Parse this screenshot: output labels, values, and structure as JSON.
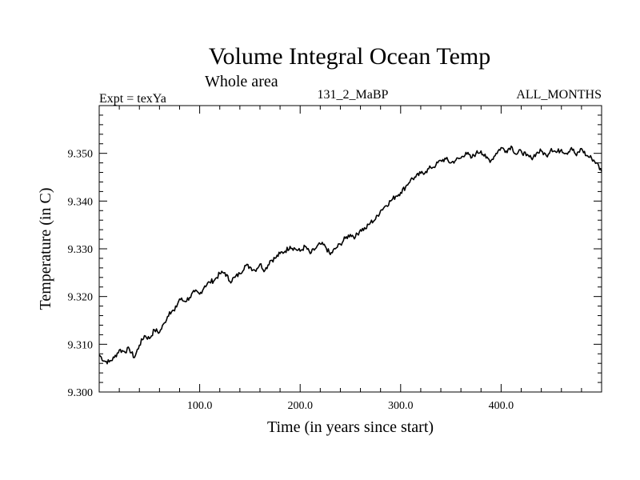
{
  "chart_data": {
    "type": "line",
    "title": "Volume Integral Ocean Temp",
    "subtitle": "Whole area",
    "annotations": {
      "left": "Expt = texYa",
      "center": "131_2_MaBP",
      "right": "ALL_MONTHS"
    },
    "xlabel": "Time (in years since start)",
    "ylabel": "Temperature (in C)",
    "xlim": [
      0,
      500
    ],
    "ylim": [
      9.3,
      9.36
    ],
    "x_ticks": [
      {
        "value": 100,
        "label": "100.0"
      },
      {
        "value": 200,
        "label": "200.0"
      },
      {
        "value": 300,
        "label": "300.0"
      },
      {
        "value": 400,
        "label": "400.0"
      }
    ],
    "y_ticks": [
      {
        "value": 9.3,
        "label": "9.300"
      },
      {
        "value": 9.31,
        "label": "9.310"
      },
      {
        "value": 9.32,
        "label": "9.320"
      },
      {
        "value": 9.33,
        "label": "9.330"
      },
      {
        "value": 9.34,
        "label": "9.340"
      },
      {
        "value": 9.35,
        "label": "9.350"
      }
    ],
    "grid": false,
    "line_color": "#000000",
    "series": [
      {
        "x": [
          0,
          5,
          10,
          15,
          20,
          25,
          30,
          35,
          40,
          45,
          50,
          55,
          60,
          65,
          70,
          75,
          80,
          85,
          90,
          95,
          100,
          105,
          110,
          115,
          120,
          125,
          130,
          135,
          140,
          145,
          150,
          155,
          160,
          165,
          170,
          175,
          180,
          185,
          190,
          195,
          200,
          205,
          210,
          215,
          220,
          225,
          230,
          235,
          240,
          245,
          250,
          255,
          260,
          265,
          270,
          275,
          280,
          285,
          290,
          295,
          300,
          305,
          310,
          315,
          320,
          325,
          330,
          335,
          340,
          345,
          350,
          355,
          360,
          365,
          370,
          375,
          380,
          385,
          390,
          395,
          400,
          405,
          410,
          415,
          420,
          425,
          430,
          435,
          440,
          445,
          450,
          455,
          460,
          465,
          470,
          475,
          480,
          485,
          490,
          495,
          500
        ],
        "y": [
          9.3078,
          9.3065,
          9.3063,
          9.3072,
          9.3088,
          9.3085,
          9.309,
          9.3072,
          9.3098,
          9.3118,
          9.3112,
          9.313,
          9.3125,
          9.3145,
          9.3168,
          9.317,
          9.3195,
          9.319,
          9.3198,
          9.321,
          9.3205,
          9.3222,
          9.323,
          9.3235,
          9.3248,
          9.325,
          9.3232,
          9.324,
          9.3248,
          9.3265,
          9.3262,
          9.3255,
          9.3268,
          9.3255,
          9.3275,
          9.328,
          9.329,
          9.3295,
          9.3305,
          9.33,
          9.3295,
          9.3305,
          9.329,
          9.33,
          9.331,
          9.3305,
          9.3288,
          9.33,
          9.331,
          9.3322,
          9.333,
          9.3325,
          9.334,
          9.3342,
          9.3355,
          9.3362,
          9.338,
          9.339,
          9.34,
          9.341,
          9.3418,
          9.343,
          9.3445,
          9.345,
          9.3458,
          9.3462,
          9.347,
          9.3475,
          9.3485,
          9.3488,
          9.348,
          9.3486,
          9.349,
          9.3502,
          9.349,
          9.35,
          9.3505,
          9.349,
          9.3485,
          9.35,
          9.3512,
          9.3505,
          9.3515,
          9.3498,
          9.3505,
          9.3495,
          9.349,
          9.35,
          9.3505,
          9.3495,
          9.351,
          9.3502,
          9.3508,
          9.35,
          9.3512,
          9.3495,
          9.351,
          9.3495,
          9.349,
          9.348,
          9.3462
        ]
      }
    ]
  }
}
